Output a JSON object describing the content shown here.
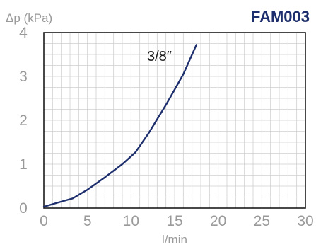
{
  "header": {
    "code": "FAM003"
  },
  "colors": {
    "curve": "#1e2f6e",
    "code": "#1e2f6e",
    "grid": "#cfcfcf",
    "frame": "#1a1a1a",
    "tick_text": "#9a9a9a"
  },
  "chart_data": {
    "type": "line",
    "title": "",
    "xlabel": "l/min",
    "ylabel": "Δp (kPa)",
    "xlim": [
      0,
      30
    ],
    "ylim": [
      0,
      4
    ],
    "x_ticks": [
      0,
      5,
      10,
      15,
      20,
      25,
      30
    ],
    "y_ticks": [
      0,
      1,
      2,
      3,
      4
    ],
    "x_tick_labels": [
      "0",
      "5",
      "10",
      "15",
      "20",
      "25",
      "30"
    ],
    "y_tick_labels": [
      "0",
      "1",
      "2",
      "3",
      "4"
    ],
    "grid": true,
    "grid_x_step": 1,
    "grid_y_step": 0.25,
    "legend": "none",
    "series": [
      {
        "name": "3/8″",
        "x": [
          0,
          1.5,
          3.3,
          5,
          7,
          9,
          10.5,
          12,
          14,
          16,
          17.5
        ],
        "y": [
          0.03,
          0.12,
          0.22,
          0.42,
          0.7,
          1.0,
          1.27,
          1.7,
          2.35,
          3.05,
          3.72
        ]
      }
    ]
  }
}
